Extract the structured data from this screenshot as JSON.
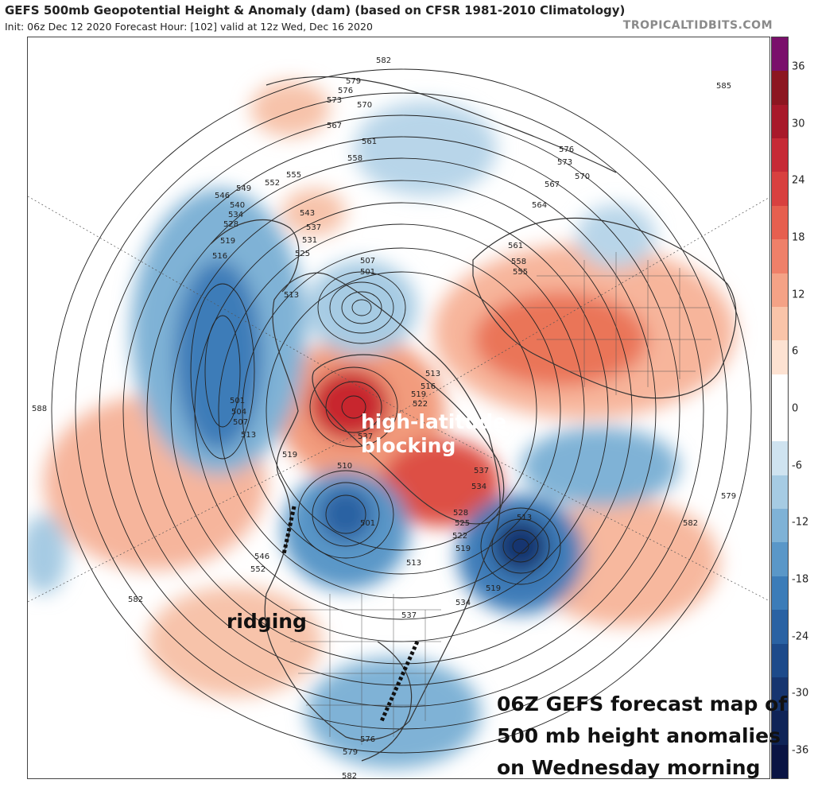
{
  "header": {
    "title": "GEFS 500mb Geopotential Height & Anomaly (dam) (based on CFSR 1981-2010 Climatology)",
    "subtitle": "Init: 06z Dec 12 2020   Forecast Hour: [102]   valid at 12z Wed, Dec 16 2020",
    "brand": "TROPICALTIDBITS.COM"
  },
  "colorbar": {
    "labels": [
      "36",
      "30",
      "24",
      "18",
      "12",
      "6",
      "0",
      "-6",
      "-12",
      "-18",
      "-24",
      "-30",
      "-36"
    ],
    "colors": [
      "#7a0f6b",
      "#8c1620",
      "#a8192a",
      "#c62a36",
      "#d8403f",
      "#e65f4f",
      "#ef8069",
      "#f4a286",
      "#f9c4a9",
      "#fde2d2",
      "#ffffff",
      "#ffffff",
      "#cfe3f0",
      "#a6cbe3",
      "#7fb2d6",
      "#5a97c8",
      "#3c7cb8",
      "#2a62a3",
      "#1d4a8a",
      "#16356f",
      "#0f2457",
      "#0a1443"
    ]
  },
  "annotations": {
    "blocking": "high-latitude\nblocking",
    "ridging": "ridging",
    "caption": "06Z GEFS forecast map of\n500 mb height anomalies\non Wednesday morning"
  },
  "contour_labels": [
    "582",
    "579",
    "576",
    "573",
    "570",
    "567",
    "564",
    "561",
    "558",
    "555",
    "552",
    "549",
    "546",
    "543",
    "540",
    "537",
    "534",
    "531",
    "528",
    "525",
    "522",
    "519",
    "516",
    "513",
    "510",
    "507",
    "504",
    "501",
    "585",
    "588"
  ]
}
